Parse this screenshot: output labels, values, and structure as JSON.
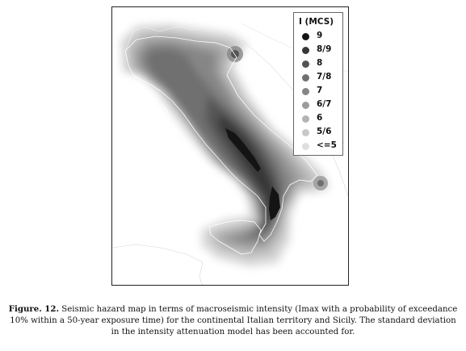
{
  "legend": {
    "title": "I (MCS)",
    "items": [
      {
        "label": "9",
        "color": "#141414"
      },
      {
        "label": "8/9",
        "color": "#363636"
      },
      {
        "label": "8",
        "color": "#545454"
      },
      {
        "label": "7/8",
        "color": "#6f6f6f"
      },
      {
        "label": "7",
        "color": "#868686"
      },
      {
        "label": "6/7",
        "color": "#9c9c9c"
      },
      {
        "label": "6",
        "color": "#b3b3b3"
      },
      {
        "label": "5/6",
        "color": "#c8c8c8"
      },
      {
        "label": "<=5",
        "color": "#dedede"
      }
    ]
  },
  "caption": {
    "label": "Figure. 12.",
    "text": "Seismic hazard map in terms of macroseismic intensity (Imax with a probability of exceedance 10% within a 50-year exposure time) for the continental Italian territory and Sicily. The standard deviation in the intensity attenuation model has been accounted for."
  }
}
